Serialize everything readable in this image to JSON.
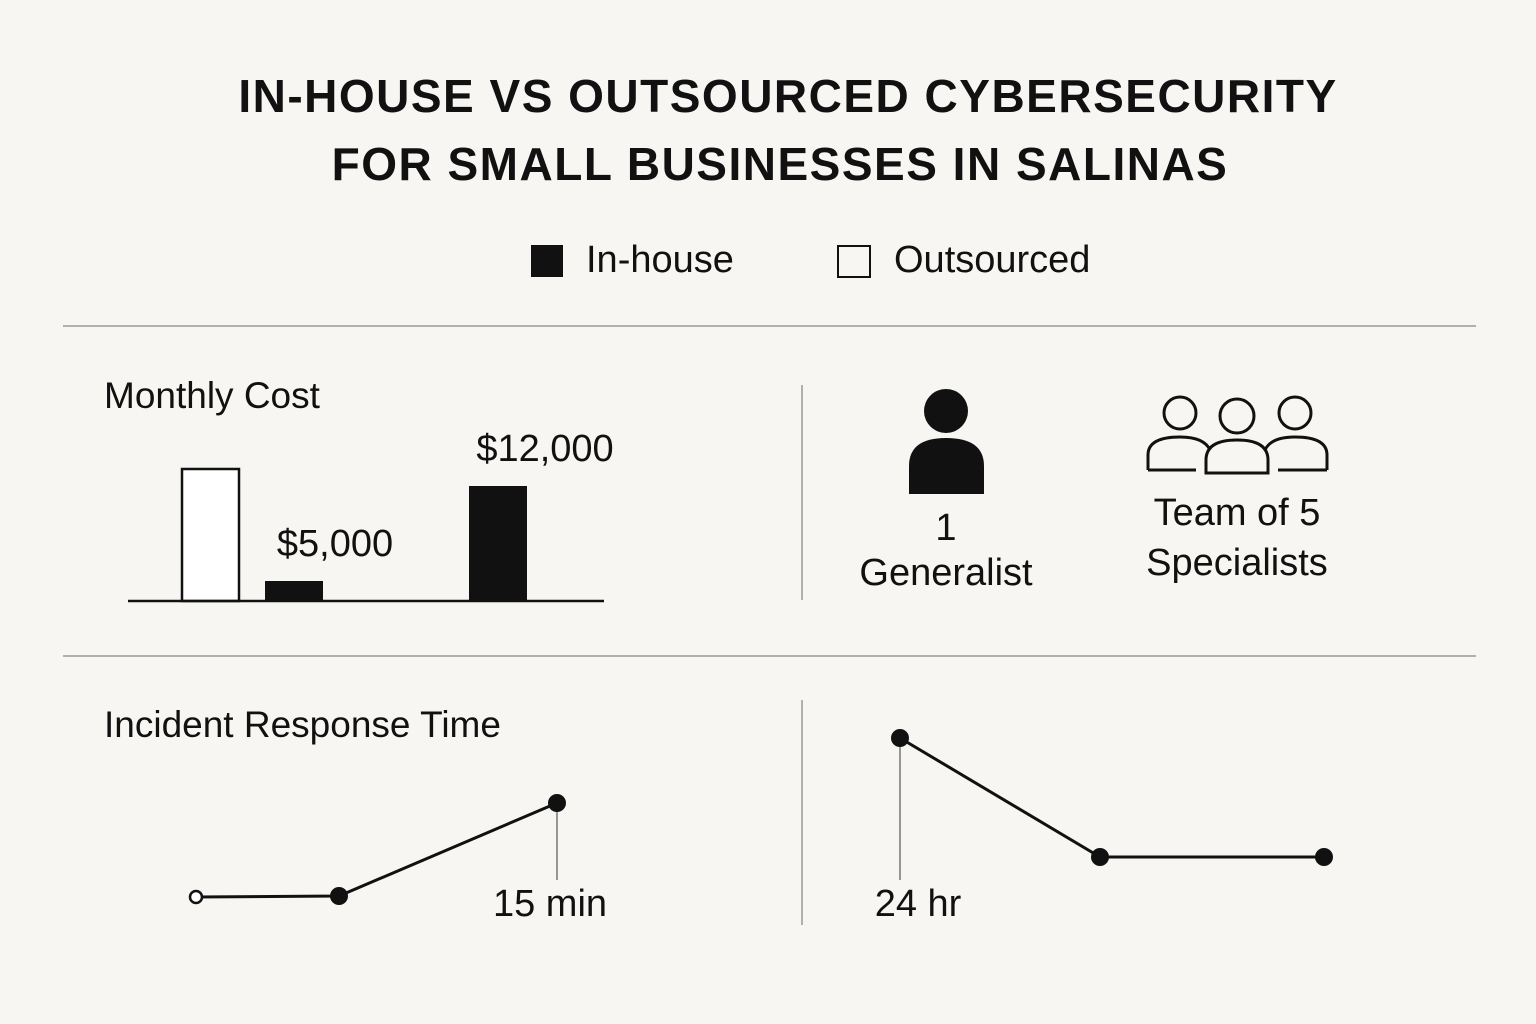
{
  "header": {
    "title_lines": [
      "IN-HOUSE VS OUTSOURCED CYBERSECURITY",
      "FOR SMALL BUSINESSES IN SALINAS"
    ]
  },
  "legend": [
    "In-house",
    "Outsourced"
  ],
  "cost": {
    "title": "Monthly Cost",
    "labels": [
      "$5,000",
      "$12,000"
    ]
  },
  "staffing": {
    "in_house": [
      "1",
      "Generalist"
    ],
    "outsourced": [
      "Team of 5",
      "Specialists"
    ]
  },
  "response": {
    "title": "Incident Response Time",
    "labels": [
      "15 min",
      "24 hr"
    ]
  }
}
